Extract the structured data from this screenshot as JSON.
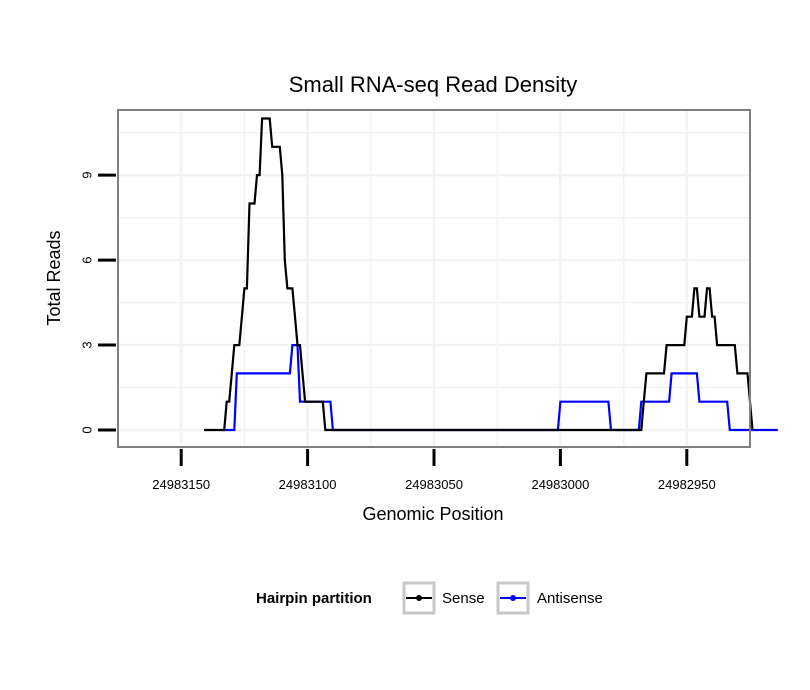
{
  "chart_data": {
    "type": "line",
    "title": "Small RNA-seq Read Density",
    "xlabel": "Genomic Position",
    "ylabel": "Total Reads",
    "xlim": [
      24983175,
      24982925
    ],
    "ylim": [
      -0.6,
      11.3
    ],
    "x_reversed": true,
    "grid": true,
    "xticks": [
      24983150,
      24983100,
      24983050,
      24983000,
      24982950
    ],
    "xtick_labels": [
      "24983150",
      "24983100",
      "24983050",
      "24983000",
      "24982950"
    ],
    "yticks": [
      0,
      3,
      6,
      9
    ],
    "ytick_labels": [
      "0",
      "3",
      "6",
      "9"
    ],
    "legend": {
      "title": "Hairpin partition",
      "position": "bottom"
    },
    "series": [
      {
        "name": "Sense",
        "color": "#000000",
        "points": [
          [
            24983141,
            0
          ],
          [
            24983133,
            0
          ],
          [
            24983132,
            1
          ],
          [
            24983131,
            1
          ],
          [
            24983130,
            2
          ],
          [
            24983129,
            3
          ],
          [
            24983127,
            3
          ],
          [
            24983126,
            4
          ],
          [
            24983125,
            5
          ],
          [
            24983124,
            5
          ],
          [
            24983123,
            8
          ],
          [
            24983121,
            8
          ],
          [
            24983120,
            9
          ],
          [
            24983119,
            9
          ],
          [
            24983118,
            11
          ],
          [
            24983115,
            11
          ],
          [
            24983114,
            10
          ],
          [
            24983111,
            10
          ],
          [
            24983110,
            9
          ],
          [
            24983109,
            6
          ],
          [
            24983108,
            5
          ],
          [
            24983106,
            5
          ],
          [
            24983105,
            4
          ],
          [
            24983104,
            3
          ],
          [
            24983103,
            3
          ],
          [
            24983102,
            2
          ],
          [
            24983101,
            1
          ],
          [
            24983094,
            1
          ],
          [
            24983093,
            0
          ],
          [
            24982968,
            0
          ],
          [
            24982967,
            1
          ],
          [
            24982966,
            2
          ],
          [
            24982959,
            2
          ],
          [
            24982958,
            3
          ],
          [
            24982951,
            3
          ],
          [
            24982950,
            4
          ],
          [
            24982948,
            4
          ],
          [
            24982947,
            5
          ],
          [
            24982946,
            5
          ],
          [
            24982945,
            4
          ],
          [
            24982943,
            4
          ],
          [
            24982942,
            5
          ],
          [
            24982941,
            5
          ],
          [
            24982940,
            4
          ],
          [
            24982939,
            4
          ],
          [
            24982938,
            3
          ],
          [
            24982931,
            3
          ],
          [
            24982930,
            2
          ],
          [
            24982926,
            2
          ],
          [
            24982925,
            1
          ],
          [
            24982924,
            0
          ]
        ]
      },
      {
        "name": "Antisense",
        "color": "#0000ff",
        "points": [
          [
            24983134,
            0
          ],
          [
            24983129,
            0
          ],
          [
            24983128,
            2
          ],
          [
            24983107,
            2
          ],
          [
            24983106,
            3
          ],
          [
            24983104,
            3
          ],
          [
            24983103,
            1
          ],
          [
            24983091,
            1
          ],
          [
            24983090,
            0
          ],
          [
            24983001,
            0
          ],
          [
            24983000,
            1
          ],
          [
            24982981,
            1
          ],
          [
            24982980,
            0
          ],
          [
            24982969,
            0
          ],
          [
            24982968,
            1
          ],
          [
            24982957,
            1
          ],
          [
            24982956,
            2
          ],
          [
            24982946,
            2
          ],
          [
            24982945,
            1
          ],
          [
            24982934,
            1
          ],
          [
            24982933,
            0
          ],
          [
            24982914,
            0
          ]
        ]
      }
    ]
  }
}
